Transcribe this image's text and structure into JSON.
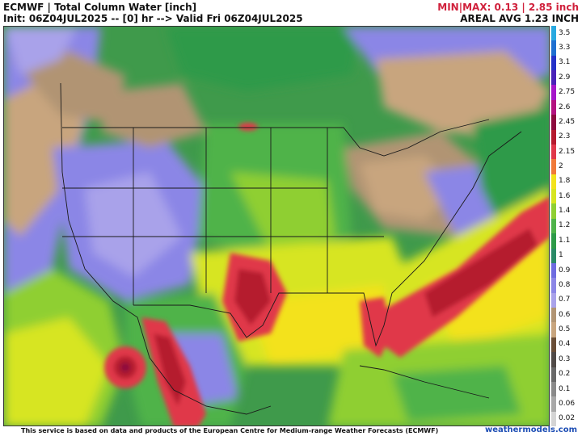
{
  "header": {
    "title": "ECMWF | Total Column Water [inch]",
    "init_line": "Init: 06Z04JUL2025 -- [0] hr --> Valid Fri 06Z04JUL2025",
    "minmax": "MIN|MAX: 0.13 | 2.85 inch",
    "areal": "AREAL AVG 1.23 INCH"
  },
  "colorbar": {
    "levels": [
      {
        "label": "3.5",
        "color": "#29a9e0"
      },
      {
        "label": "3.3",
        "color": "#1f6fd0"
      },
      {
        "label": "3.1",
        "color": "#2431c8"
      },
      {
        "label": "2.9",
        "color": "#4a22b8"
      },
      {
        "label": "2.75",
        "color": "#a516c9"
      },
      {
        "label": "2.6",
        "color": "#b3137f"
      },
      {
        "label": "2.45",
        "color": "#8c0a3e"
      },
      {
        "label": "2.3",
        "color": "#b51a2e"
      },
      {
        "label": "2.15",
        "color": "#e0384a"
      },
      {
        "label": "2",
        "color": "#f07a3a"
      },
      {
        "label": "1.8",
        "color": "#f3e21c"
      },
      {
        "label": "1.6",
        "color": "#d7e521"
      },
      {
        "label": "1.4",
        "color": "#8fcf33"
      },
      {
        "label": "1.2",
        "color": "#4fb34a"
      },
      {
        "label": "1.1",
        "color": "#2d9a48"
      },
      {
        "label": "1",
        "color": "#2a8a67"
      },
      {
        "label": "0.9",
        "color": "#6e6ce0"
      },
      {
        "label": "0.8",
        "color": "#8b86e6"
      },
      {
        "label": "0.7",
        "color": "#a9a2ea"
      },
      {
        "label": "0.6",
        "color": "#b19473"
      },
      {
        "label": "0.5",
        "color": "#c8a57e"
      },
      {
        "label": "0.4",
        "color": "#6a4e37"
      },
      {
        "label": "0.3",
        "color": "#504a47"
      },
      {
        "label": "0.2",
        "color": "#686868"
      },
      {
        "label": "0.1",
        "color": "#8a8a8a"
      },
      {
        "label": "0.06",
        "color": "#a8a8a8"
      },
      {
        "label": "0.02",
        "color": "#d4d4d4"
      }
    ]
  },
  "footer": {
    "disclaimer": "This service is based on data and products of the European Centre for Medium-range Weather Forecasts (ECMWF)",
    "brand": "weathermodels.com"
  }
}
